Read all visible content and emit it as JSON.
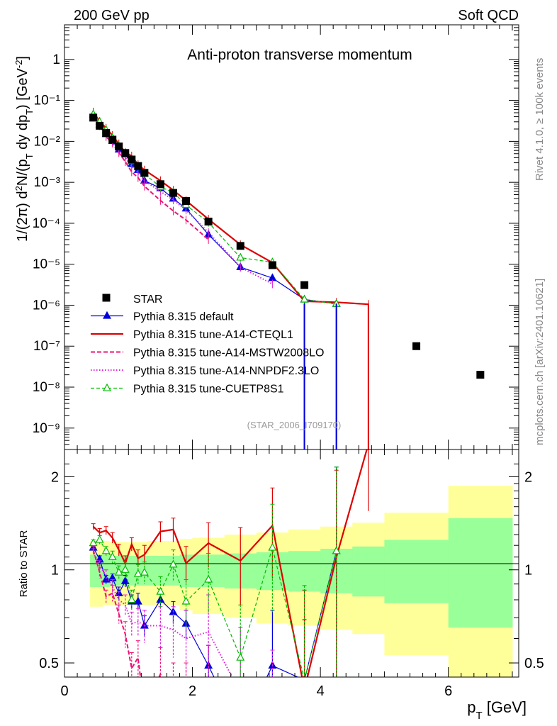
{
  "header": {
    "left": "200 GeV pp",
    "right": "Soft QCD",
    "title": "Anti-proton transverse momentum",
    "watermark": "(STAR_2006_I709170)",
    "side_top": "Rivet 4.1.0, ≥ 100k events",
    "side_bottom": "mcplots.cern.ch [arXiv:2401.10621]"
  },
  "chart_data": {
    "type": "line",
    "ylabel_main": "1/(2π) d²N/(p_T dy dp_T) [GeV⁻²]",
    "ylabel_ratio": "Ratio to STAR",
    "xlabel": "p_T [GeV]",
    "xlim": [
      0,
      7.1
    ],
    "ylim_main": [
      3e-10,
      7
    ],
    "ylim_ratio": [
      0.45,
      2.45
    ],
    "x_ticks": [
      0,
      2,
      4,
      6
    ],
    "main_y_ticks": [
      {
        "v": 1e-09,
        "label": "10⁻⁹"
      },
      {
        "v": 1e-08,
        "label": "10⁻⁸"
      },
      {
        "v": 1e-07,
        "label": "10⁻⁷"
      },
      {
        "v": 1e-06,
        "label": "10⁻⁶"
      },
      {
        "v": 1e-05,
        "label": "10⁻⁵"
      },
      {
        "v": 0.0001,
        "label": "10⁻⁴"
      },
      {
        "v": 0.001,
        "label": "10⁻³"
      },
      {
        "v": 0.01,
        "label": "10⁻²"
      },
      {
        "v": 0.1,
        "label": "10⁻¹"
      },
      {
        "v": 1,
        "label": "1"
      }
    ],
    "ratio_y_ticks": [
      {
        "v": 0.5,
        "label": "0.5"
      },
      {
        "v": 1,
        "label": "1"
      },
      {
        "v": 2,
        "label": "2"
      }
    ],
    "data_series": {
      "name": "STAR",
      "x": [
        0.45,
        0.55,
        0.65,
        0.75,
        0.85,
        0.95,
        1.05,
        1.15,
        1.25,
        1.5,
        1.7,
        1.9,
        2.25,
        2.75,
        3.25,
        3.75,
        5.5,
        6.5
      ],
      "y": [
        0.038,
        0.024,
        0.016,
        0.011,
        0.0075,
        0.0052,
        0.0036,
        0.0025,
        0.0017,
        0.0009,
        0.00055,
        0.00035,
        0.00011,
        2.8e-05,
        9.5e-06,
        3.1e-06,
        1e-07,
        2e-08
      ]
    },
    "stat_band": {
      "edges": [
        0.4,
        0.5,
        0.6,
        0.7,
        0.8,
        0.9,
        1.0,
        1.1,
        1.2,
        1.3,
        1.6,
        1.8,
        2.0,
        2.5,
        3.0,
        3.5,
        4.0,
        4.5,
        5.0,
        6.0,
        7.0
      ],
      "lo": [
        0.88,
        0.88,
        0.88,
        0.89,
        0.89,
        0.89,
        0.89,
        0.89,
        0.89,
        0.89,
        0.89,
        0.88,
        0.88,
        0.87,
        0.86,
        0.85,
        0.84,
        0.82,
        0.78,
        0.65
      ],
      "hi": [
        1.12,
        1.12,
        1.12,
        1.11,
        1.11,
        1.11,
        1.11,
        1.11,
        1.11,
        1.11,
        1.11,
        1.12,
        1.12,
        1.13,
        1.14,
        1.15,
        1.17,
        1.19,
        1.25,
        1.47
      ]
    },
    "syst_band": {
      "edges": [
        0.4,
        0.5,
        0.6,
        0.7,
        0.8,
        0.9,
        1.0,
        1.1,
        1.2,
        1.3,
        1.6,
        1.8,
        2.0,
        2.5,
        3.0,
        3.5,
        4.0,
        4.5,
        5.0,
        6.0,
        7.0
      ],
      "lo": [
        0.76,
        0.76,
        0.77,
        0.77,
        0.77,
        0.77,
        0.77,
        0.77,
        0.77,
        0.77,
        0.77,
        0.74,
        0.72,
        0.7,
        0.67,
        0.66,
        0.64,
        0.62,
        0.53,
        0.45
      ],
      "hi": [
        1.24,
        1.24,
        1.24,
        1.23,
        1.23,
        1.23,
        1.23,
        1.23,
        1.23,
        1.24,
        1.24,
        1.26,
        1.27,
        1.3,
        1.32,
        1.35,
        1.38,
        1.42,
        1.53,
        1.87
      ]
    },
    "series": [
      {
        "name": "Pythia 8.315 default",
        "color": "#0000dd",
        "dash": "",
        "width": 1.2,
        "marker": "triangle-filled",
        "x": [
          0.45,
          0.55,
          0.65,
          0.75,
          0.85,
          0.95,
          1.05,
          1.15,
          1.25,
          1.5,
          1.7,
          1.9,
          2.25,
          2.75,
          3.25,
          3.75,
          4.25
        ],
        "y": [
          0.045,
          0.026,
          0.015,
          0.0102,
          0.0063,
          0.0048,
          0.0028,
          0.002,
          0.0011,
          0.00072,
          0.0004,
          0.00023,
          5.3e-05,
          8.5e-06,
          4.6e-06,
          1.38e-06,
          1.08e-06
        ],
        "ratio": [
          1.18,
          1.08,
          0.93,
          0.94,
          0.84,
          0.92,
          0.79,
          0.79,
          0.66,
          0.8,
          0.73,
          0.67,
          0.49,
          0.3,
          0.49,
          0.44,
          1.15
        ],
        "ratio_err": [
          0.03,
          0.03,
          0.03,
          0.03,
          0.04,
          0.04,
          0.04,
          0.05,
          0.05,
          0.05,
          0.06,
          0.07,
          0.08,
          0.1,
          0.25,
          0.25,
          1.0
        ]
      },
      {
        "name": "Pythia 8.315 tune-A14-CTEQL1",
        "color": "#dd0000",
        "dash": "",
        "width": 2.2,
        "marker": "none",
        "x": [
          0.45,
          0.55,
          0.65,
          0.75,
          0.85,
          0.95,
          1.05,
          1.15,
          1.25,
          1.5,
          1.7,
          1.9,
          2.25,
          2.75,
          3.25,
          3.75,
          4.25,
          4.75
        ],
        "y": [
          0.052,
          0.031,
          0.021,
          0.014,
          0.0087,
          0.0054,
          0.0044,
          0.0027,
          0.002,
          0.0011,
          0.00064,
          0.00036,
          0.000126,
          3e-05,
          1.09e-05,
          1.25e-06,
          1.18e-06,
          1.05e-06
        ],
        "ratio": [
          1.38,
          1.32,
          1.34,
          1.27,
          1.16,
          1.05,
          1.21,
          1.09,
          1.12,
          1.33,
          1.35,
          1.05,
          1.22,
          1.07,
          1.39,
          0.41,
          1.1,
          2.55
        ],
        "ratio_err": [
          0.03,
          0.04,
          0.04,
          0.05,
          0.05,
          0.06,
          0.06,
          0.07,
          0.08,
          0.1,
          0.12,
          0.14,
          0.2,
          0.3,
          0.45,
          0.45,
          1.0,
          1.0
        ]
      },
      {
        "name": "Pythia 8.315 tune-A14-MSTW2008LO",
        "color": "#ee1177",
        "dash": "6,3",
        "width": 2.0,
        "marker": "none",
        "x": [
          0.45,
          0.55,
          0.65,
          0.75,
          0.85,
          0.95,
          1.05,
          1.15,
          1.25,
          1.5,
          1.7,
          1.9,
          2.25
        ],
        "y": [
          0.043,
          0.024,
          0.013,
          0.009,
          0.0053,
          0.0032,
          0.0018,
          0.0013,
          0.0008,
          0.00036,
          0.0002,
          0.00012,
          4e-05
        ],
        "ratio": [
          1.16,
          0.98,
          0.82,
          0.84,
          0.72,
          0.62,
          0.48,
          0.52,
          0.35,
          0.46,
          0.38,
          0.36,
          0.37
        ],
        "ratio_err": [
          0.03,
          0.04,
          0.04,
          0.05,
          0.05,
          0.06,
          0.06,
          0.07,
          0.08,
          0.1,
          0.12,
          0.14,
          0.2
        ]
      },
      {
        "name": "Pythia 8.315 tune-A14-NNPDF2.3LO",
        "color": "#dd22dd",
        "dash": "1.5,2.5",
        "width": 2.0,
        "marker": "none",
        "x": [
          0.45,
          0.55,
          0.65,
          0.75,
          0.85,
          0.95,
          1.05,
          1.15,
          1.25,
          1.5,
          1.7,
          1.9,
          2.25,
          2.75,
          3.25
        ],
        "y": [
          0.043,
          0.025,
          0.014,
          0.0098,
          0.0062,
          0.004,
          0.0025,
          0.0017,
          0.0011,
          0.0006,
          0.00037,
          0.00021,
          6e-05,
          8.5e-06,
          3.3e-06
        ],
        "ratio": [
          1.14,
          1.03,
          0.96,
          0.88,
          0.8,
          0.77,
          0.67,
          0.68,
          0.66,
          0.66,
          0.64,
          0.6,
          0.63,
          0.4,
          0.3
        ],
        "ratio_err": [
          0.03,
          0.04,
          0.04,
          0.05,
          0.05,
          0.06,
          0.06,
          0.07,
          0.08,
          0.1,
          0.12,
          0.14,
          0.2,
          0.25,
          0.25
        ]
      },
      {
        "name": "Pythia 8.315 tune-CUETP8S1",
        "color": "#00bb00",
        "dash": "5,3",
        "width": 1.2,
        "marker": "triangle-open",
        "x": [
          0.45,
          0.55,
          0.65,
          0.75,
          0.85,
          0.95,
          1.05,
          1.15,
          1.25,
          1.5,
          1.7,
          1.9,
          2.25,
          2.75,
          3.25,
          3.75,
          4.25
        ],
        "y": [
          0.046,
          0.03,
          0.019,
          0.0122,
          0.0076,
          0.0052,
          0.0033,
          0.0024,
          0.0016,
          0.00077,
          0.00057,
          0.00028,
          0.000105,
          1.45e-05,
          1.12e-05,
          1.38e-06,
          1.08e-06
        ],
        "ratio": [
          1.22,
          1.25,
          1.15,
          1.1,
          0.98,
          1.0,
          0.8,
          0.97,
          0.98,
          0.85,
          1.04,
          0.79,
          0.93,
          0.52,
          1.18,
          0.44,
          1.15
        ],
        "ratio_err": [
          0.03,
          0.04,
          0.04,
          0.05,
          0.05,
          0.06,
          0.06,
          0.07,
          0.08,
          0.1,
          0.12,
          0.14,
          0.2,
          0.25,
          0.45,
          0.45,
          1.0
        ]
      }
    ]
  }
}
